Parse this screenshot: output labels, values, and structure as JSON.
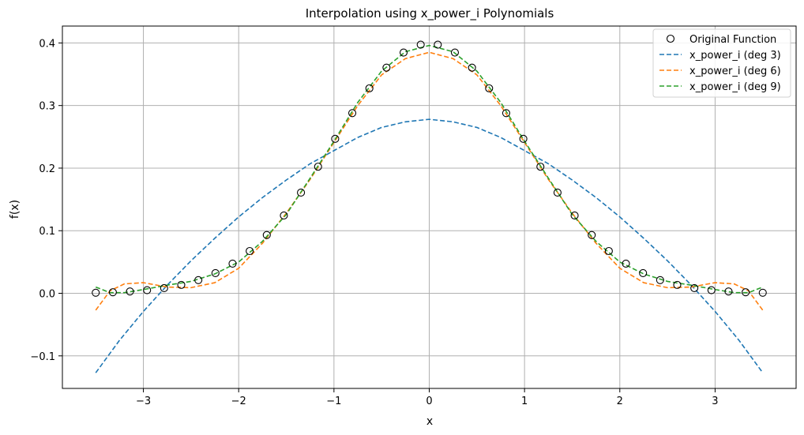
{
  "chart_data": {
    "type": "line",
    "title": "Interpolation using x_power_i Polynomials",
    "xlabel": "x",
    "ylabel": "f(x)",
    "xlim": [
      -3.85,
      3.85
    ],
    "ylim": [
      -0.152,
      0.427
    ],
    "xticks": [
      -3,
      -2,
      -1,
      0,
      1,
      2,
      3
    ],
    "xtick_labels": [
      "−3",
      "−2",
      "−1",
      "0",
      "1",
      "2",
      "3"
    ],
    "yticks": [
      -0.1,
      0.0,
      0.1,
      0.2,
      0.3,
      0.4
    ],
    "ytick_labels": [
      "−0.1",
      "0.0",
      "0.1",
      "0.2",
      "0.3",
      "0.4"
    ],
    "grid": true,
    "legend_position": "top-right",
    "series": [
      {
        "name": "Original Function",
        "kind": "markers",
        "marker": "open-circle",
        "color": "#000000",
        "x": [
          -3.5,
          -3.3205,
          -3.141,
          -2.9615,
          -2.7821,
          -2.6026,
          -2.4231,
          -2.2436,
          -2.0641,
          -1.8846,
          -1.7051,
          -1.5256,
          -1.3462,
          -1.1667,
          -0.9872,
          -0.8077,
          -0.6282,
          -0.4487,
          -0.2692,
          -0.0897,
          0.0897,
          0.2692,
          0.4487,
          0.6282,
          0.8077,
          0.9872,
          1.1667,
          1.3462,
          1.5256,
          1.7051,
          1.8846,
          2.0641,
          2.2436,
          2.4231,
          2.6026,
          2.7821,
          2.9615,
          3.141,
          3.3205,
          3.5
        ],
        "y": [
          0.0009,
          0.0016,
          0.0029,
          0.005,
          0.0083,
          0.0134,
          0.0211,
          0.0322,
          0.0474,
          0.0675,
          0.0931,
          0.1243,
          0.1609,
          0.2023,
          0.2468,
          0.2879,
          0.3275,
          0.3606,
          0.3847,
          0.3973,
          0.3973,
          0.3847,
          0.3606,
          0.3275,
          0.2879,
          0.2468,
          0.2023,
          0.1609,
          0.1243,
          0.0931,
          0.0675,
          0.0474,
          0.0322,
          0.0211,
          0.0134,
          0.0083,
          0.005,
          0.0029,
          0.0016,
          0.0009
        ]
      },
      {
        "name": "x_power_i (deg 3)",
        "kind": "dashed-line",
        "color": "#1f77b4",
        "x": [
          -3.5,
          -3.25,
          -3.0,
          -2.75,
          -2.5,
          -2.25,
          -2.0,
          -1.75,
          -1.5,
          -1.25,
          -1.0,
          -0.75,
          -0.5,
          -0.25,
          0.0,
          0.25,
          0.5,
          0.75,
          1.0,
          1.25,
          1.5,
          1.75,
          2.0,
          2.25,
          2.5,
          2.75,
          3.0,
          3.25,
          3.5
        ],
        "y": [
          -0.127,
          -0.075,
          -0.029,
          0.013,
          0.052,
          0.088,
          0.122,
          0.153,
          0.181,
          0.207,
          0.228,
          0.249,
          0.265,
          0.274,
          0.278,
          0.274,
          0.265,
          0.249,
          0.228,
          0.207,
          0.181,
          0.153,
          0.122,
          0.088,
          0.052,
          0.013,
          -0.029,
          -0.075,
          -0.127
        ]
      },
      {
        "name": "x_power_i (deg 6)",
        "kind": "dashed-line",
        "color": "#ff7f0e",
        "x": [
          -3.5,
          -3.35,
          -3.2,
          -3.0,
          -2.75,
          -2.5,
          -2.25,
          -2.0,
          -1.75,
          -1.5,
          -1.25,
          -1.0,
          -0.75,
          -0.5,
          -0.25,
          0.0,
          0.25,
          0.5,
          0.75,
          1.0,
          1.25,
          1.5,
          1.75,
          2.0,
          2.25,
          2.5,
          2.75,
          3.0,
          3.2,
          3.35,
          3.5
        ],
        "y": [
          -0.027,
          0.004,
          0.015,
          0.017,
          0.01,
          0.009,
          0.017,
          0.04,
          0.08,
          0.128,
          0.182,
          0.241,
          0.3,
          0.349,
          0.375,
          0.385,
          0.375,
          0.349,
          0.3,
          0.241,
          0.182,
          0.128,
          0.08,
          0.04,
          0.017,
          0.009,
          0.01,
          0.017,
          0.015,
          0.004,
          -0.027
        ]
      },
      {
        "name": "x_power_i (deg 9)",
        "kind": "dashed-line",
        "color": "#2ca02c",
        "x": [
          -3.5,
          -3.35,
          -3.2,
          -3.0,
          -2.75,
          -2.5,
          -2.25,
          -2.0,
          -1.75,
          -1.5,
          -1.25,
          -1.0,
          -0.75,
          -0.5,
          -0.25,
          0.0,
          0.25,
          0.5,
          0.75,
          1.0,
          1.25,
          1.5,
          1.75,
          2.0,
          2.25,
          2.5,
          2.75,
          3.0,
          3.2,
          3.35,
          3.5
        ],
        "y": [
          0.01,
          0.001,
          0.001,
          0.006,
          0.013,
          0.019,
          0.031,
          0.05,
          0.083,
          0.126,
          0.184,
          0.243,
          0.305,
          0.355,
          0.386,
          0.396,
          0.386,
          0.355,
          0.305,
          0.243,
          0.184,
          0.126,
          0.083,
          0.05,
          0.031,
          0.019,
          0.013,
          0.006,
          0.001,
          0.001,
          0.01
        ]
      }
    ]
  }
}
